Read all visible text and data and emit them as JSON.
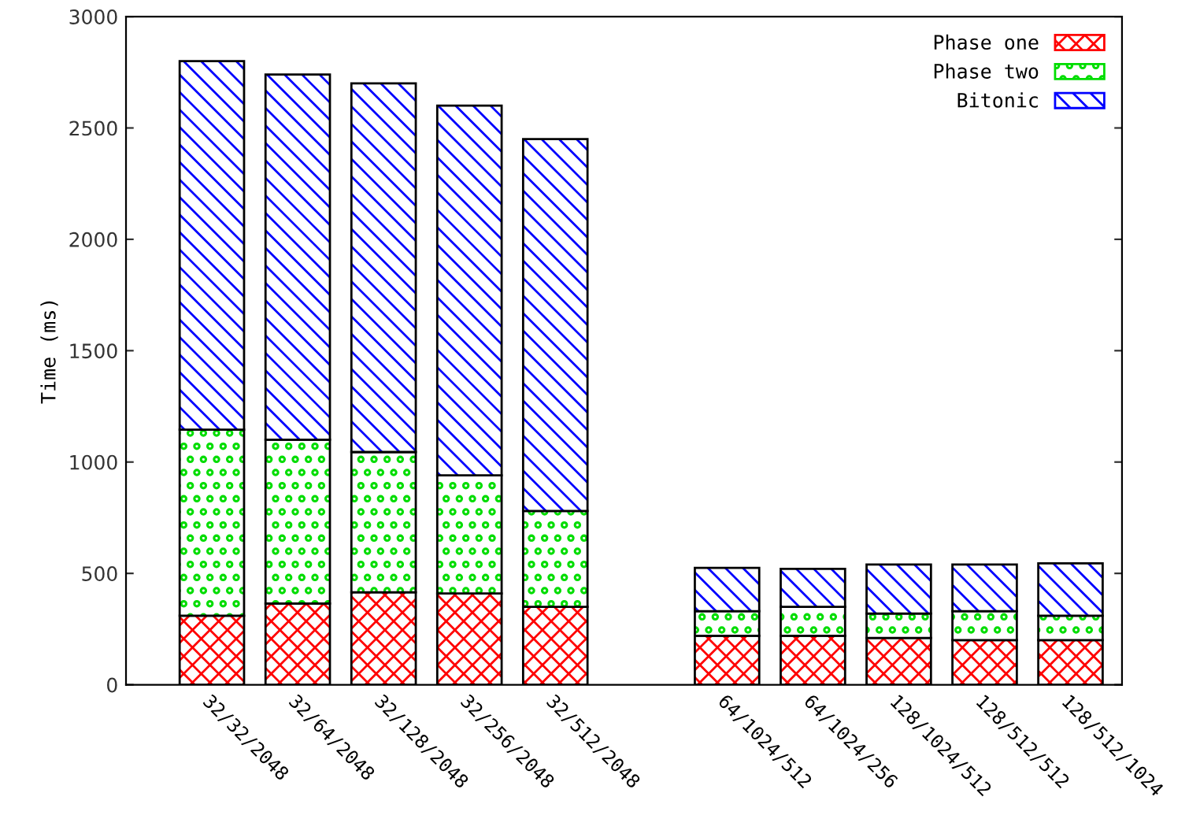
{
  "chart_data": {
    "type": "bar",
    "stacked": true,
    "ylabel": "Time (ms)",
    "categories": [
      "32/32/2048",
      "32/64/2048",
      "32/128/2048",
      "32/256/2048",
      "32/512/2048",
      null,
      "64/1024/512",
      "64/1024/256",
      "128/1024/512",
      "128/512/512",
      "128/512/1024"
    ],
    "series": [
      {
        "name": "Phase one",
        "color": "#ff0000",
        "values": [
          310,
          365,
          415,
          410,
          350,
          null,
          220,
          220,
          210,
          200,
          200
        ]
      },
      {
        "name": "Phase two",
        "color": "#00dd00",
        "values": [
          835,
          735,
          630,
          530,
          430,
          null,
          110,
          130,
          110,
          130,
          110
        ]
      },
      {
        "name": "Bitonic",
        "color": "#0000ff",
        "values": [
          1655,
          1640,
          1655,
          1660,
          1670,
          null,
          195,
          170,
          220,
          210,
          235
        ]
      }
    ],
    "ylim": [
      0,
      3000
    ],
    "yticks": [
      0,
      500,
      1000,
      1500,
      2000,
      2500,
      3000
    ],
    "grid": false,
    "legend": "top right"
  }
}
